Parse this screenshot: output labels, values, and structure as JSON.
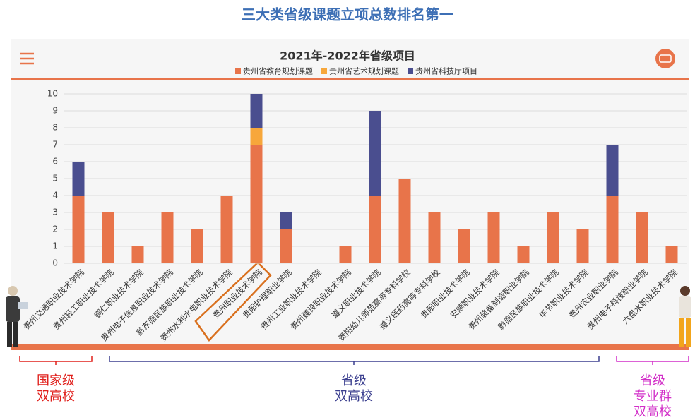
{
  "header": {
    "title": "三大类省级课题立项总数排名第一"
  },
  "chart_data": {
    "type": "stacked_bar",
    "title": "2021年-2022年省级项目",
    "categories": [
      "贵州交通职业技术学院",
      "贵州轻工职业技术学院",
      "铜仁职业技术学院",
      "贵州电子信息职业技术学院",
      "黔东南民族职业技术学院",
      "贵州水利水电职业技术学院",
      "贵州职业技术学院",
      "贵阳护理职业学院",
      "贵州工业职业技术学院",
      "贵州建设职业技术学院",
      "遵义职业技术学院",
      "贵阳幼儿师范高等专科学校",
      "遵义医药高等专科学校",
      "贵阳职业技术学院",
      "安顺职业技术学院",
      "贵州装备制造职业学院",
      "黔南民族职业技术学院",
      "毕节职业技术学院",
      "贵州农业职业学院",
      "贵州电子科技职业学院",
      "六盘水职业技术学院"
    ],
    "series": [
      {
        "name": "贵州省教育规划课题",
        "color": "#e8744a",
        "values": [
          4,
          3,
          1,
          3,
          2,
          4,
          7,
          2,
          0,
          1,
          4,
          5,
          3,
          2,
          3,
          1,
          3,
          2,
          4,
          3,
          1
        ]
      },
      {
        "name": "贵州省艺术规划课题",
        "color": "#f7a73b",
        "values": [
          0,
          0,
          0,
          0,
          0,
          0,
          1,
          0,
          0,
          0,
          0,
          0,
          0,
          0,
          0,
          0,
          0,
          0,
          0,
          0,
          0
        ]
      },
      {
        "name": "贵州省科技厅项目",
        "color": "#4a4e8f",
        "values": [
          2,
          0,
          0,
          0,
          0,
          0,
          2,
          1,
          0,
          0,
          5,
          0,
          0,
          0,
          0,
          0,
          0,
          0,
          3,
          0,
          0
        ]
      }
    ],
    "ylim": [
      0,
      10
    ],
    "yticks": [
      0,
      1,
      2,
      3,
      4,
      5,
      6,
      7,
      8,
      9,
      10
    ],
    "grid": true,
    "legend": "top"
  },
  "groups": [
    {
      "lines": [
        "国家级",
        "双高校"
      ],
      "color": "#e0201c"
    },
    {
      "lines": [
        "省级",
        "双高校"
      ],
      "color": "#3b3f8f"
    },
    {
      "lines": [
        "省级",
        "专业群",
        "双高校"
      ],
      "color": "#d22fc8"
    }
  ]
}
